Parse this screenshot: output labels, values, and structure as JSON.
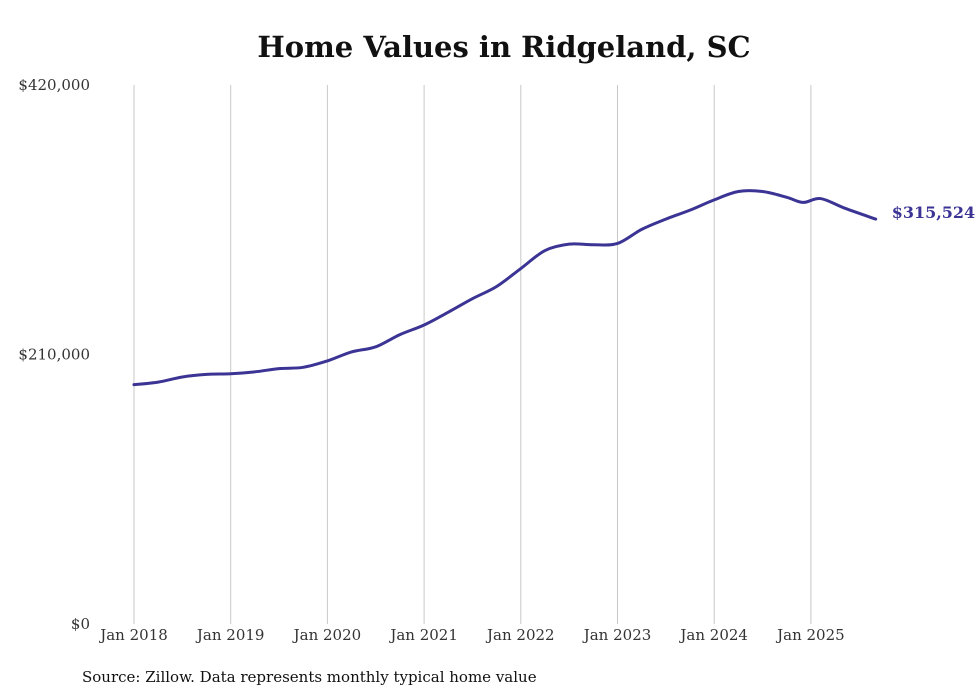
{
  "chart_data": {
    "type": "line",
    "title": "Home Values in Ridgeland, SC",
    "xlabel": "",
    "ylabel": "",
    "ylim": [
      0,
      420000
    ],
    "yticks": [
      0,
      210000,
      420000
    ],
    "ytick_labels": [
      "$0",
      "$210,000",
      "$420,000"
    ],
    "xlim": [
      2018.0,
      2025.9
    ],
    "xticks": [
      2018,
      2019,
      2020,
      2021,
      2022,
      2023,
      2024,
      2025
    ],
    "xtick_labels": [
      "Jan 2018",
      "Jan 2019",
      "Jan 2020",
      "Jan 2021",
      "Jan 2022",
      "Jan 2023",
      "Jan 2024",
      "Jan 2025"
    ],
    "grid": "vertical",
    "series": [
      {
        "name": "Typical home value",
        "color": "#3b3494",
        "end_label": "$315,524",
        "points": [
          {
            "x": 2018.0,
            "y": 186500
          },
          {
            "x": 2018.25,
            "y": 188500
          },
          {
            "x": 2018.5,
            "y": 192500
          },
          {
            "x": 2018.75,
            "y": 194500
          },
          {
            "x": 2019.0,
            "y": 195000
          },
          {
            "x": 2019.25,
            "y": 196500
          },
          {
            "x": 2019.5,
            "y": 199000
          },
          {
            "x": 2019.75,
            "y": 200000
          },
          {
            "x": 2020.0,
            "y": 205000
          },
          {
            "x": 2020.25,
            "y": 212000
          },
          {
            "x": 2020.5,
            "y": 216000
          },
          {
            "x": 2020.75,
            "y": 225500
          },
          {
            "x": 2021.0,
            "y": 233000
          },
          {
            "x": 2021.25,
            "y": 243000
          },
          {
            "x": 2021.5,
            "y": 253500
          },
          {
            "x": 2021.75,
            "y": 263000
          },
          {
            "x": 2022.0,
            "y": 277000
          },
          {
            "x": 2022.25,
            "y": 291000
          },
          {
            "x": 2022.5,
            "y": 296000
          },
          {
            "x": 2022.75,
            "y": 295500
          },
          {
            "x": 2023.0,
            "y": 296500
          },
          {
            "x": 2023.25,
            "y": 307500
          },
          {
            "x": 2023.5,
            "y": 315500
          },
          {
            "x": 2023.75,
            "y": 322500
          },
          {
            "x": 2024.0,
            "y": 330500
          },
          {
            "x": 2024.25,
            "y": 337000
          },
          {
            "x": 2024.5,
            "y": 337000
          },
          {
            "x": 2024.75,
            "y": 332500
          },
          {
            "x": 2024.92,
            "y": 328500
          },
          {
            "x": 2025.1,
            "y": 331500
          },
          {
            "x": 2025.35,
            "y": 324000
          },
          {
            "x": 2025.67,
            "y": 315524
          }
        ]
      }
    ]
  },
  "source_note": "Source: Zillow. Data represents monthly typical home value"
}
